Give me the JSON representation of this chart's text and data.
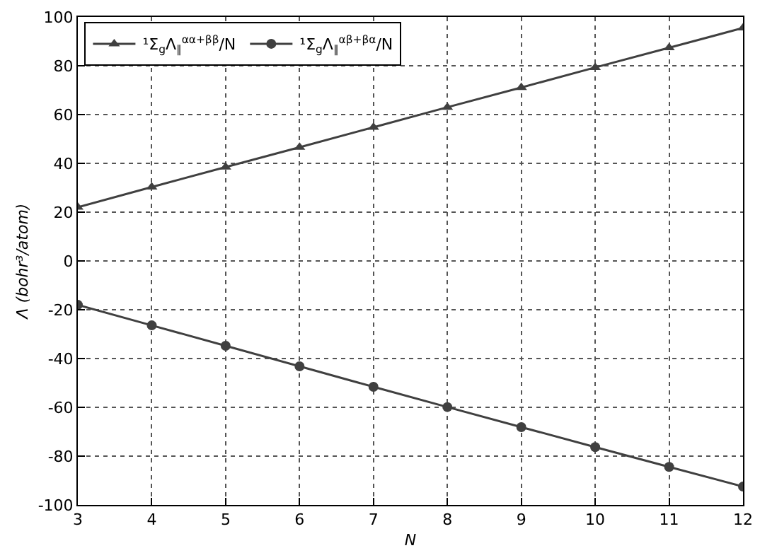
{
  "chart_data": {
    "type": "line",
    "xlabel": "N",
    "ylabel": "Λ (bohr³/atom)",
    "x": [
      3,
      4,
      5,
      6,
      7,
      8,
      9,
      10,
      11,
      12
    ],
    "series": [
      {
        "name": "¹Σ$_{g}$Λ$_{∥}$$^{αα+ββ}$/N",
        "color": "#404040",
        "marker": "triangle",
        "values": [
          22,
          30.3,
          38.5,
          46.6,
          54.8,
          63,
          71.1,
          79.3,
          87.4,
          95.5
        ]
      },
      {
        "name": "¹Σ$_{g}$Λ$_{∥}$$^{αβ+βα}$/N",
        "color": "#404040",
        "marker": "circle",
        "values": [
          -18,
          -26.4,
          -34.8,
          -43.2,
          -51.6,
          -59.9,
          -68.1,
          -76.3,
          -84.4,
          -92.5
        ]
      }
    ],
    "xlim": [
      3,
      12
    ],
    "xticks": [
      3,
      4,
      5,
      6,
      7,
      8,
      9,
      10,
      11,
      12
    ],
    "ylim": [
      -100,
      100
    ],
    "yticks": [
      -100,
      -80,
      -60,
      -40,
      -20,
      0,
      20,
      40,
      60,
      80,
      100
    ],
    "grid": true,
    "legend": "top left",
    "line_style": "solid"
  }
}
